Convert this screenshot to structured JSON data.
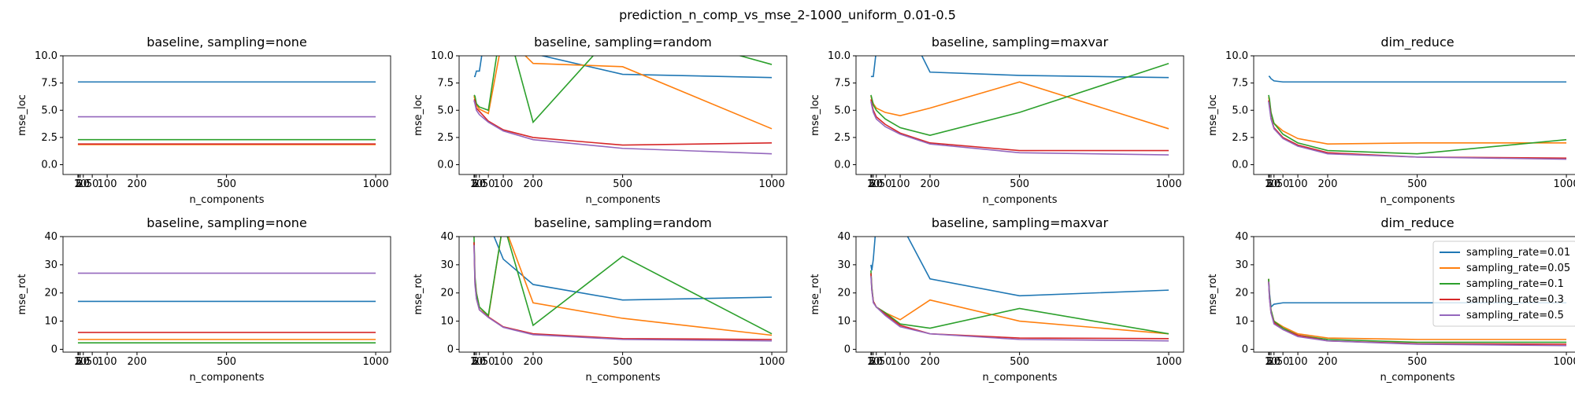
{
  "suptitle": "prediction_n_comp_vs_mse_2-1000_uniform_0.01-0.5",
  "chart_data": [
    {
      "type": "line",
      "title": "baseline, sampling=none",
      "xlabel": "n_components",
      "ylabel": "mse_loc",
      "x": [
        2,
        5,
        10,
        20,
        50,
        100,
        200,
        500,
        1000
      ],
      "xlim": [
        -48,
        1050
      ],
      "xticks": [
        2,
        5,
        10,
        20,
        50,
        100,
        200,
        500,
        1000
      ],
      "ylim": [
        -0.9,
        10
      ],
      "yticks": [
        {
          "value": 0,
          "label": "0.0"
        },
        {
          "value": 2.5,
          "label": "2.5"
        },
        {
          "value": 5,
          "label": "5.0"
        },
        {
          "value": 7.5,
          "label": "7.5"
        },
        {
          "value": 10,
          "label": "10.0"
        }
      ],
      "series": [
        {
          "color": "#1f77b4",
          "values": [
            7.6,
            7.6,
            7.6,
            7.6,
            7.6,
            7.6,
            7.6,
            7.6,
            7.6
          ]
        },
        {
          "color": "#ff7f0e",
          "values": [
            1.85,
            1.85,
            1.85,
            1.85,
            1.85,
            1.85,
            1.85,
            1.85,
            1.85
          ]
        },
        {
          "color": "#2ca02c",
          "values": [
            2.3,
            2.3,
            2.3,
            2.3,
            2.3,
            2.3,
            2.3,
            2.3,
            2.3
          ]
        },
        {
          "color": "#d62728",
          "values": [
            1.9,
            1.9,
            1.9,
            1.9,
            1.9,
            1.9,
            1.9,
            1.9,
            1.9
          ]
        },
        {
          "color": "#9467bd",
          "values": [
            4.4,
            4.4,
            4.4,
            4.4,
            4.4,
            4.4,
            4.4,
            4.4,
            4.4
          ]
        }
      ]
    },
    {
      "type": "line",
      "title": "baseline, sampling=random",
      "xlabel": "n_components",
      "ylabel": "mse_loc",
      "x": [
        2,
        5,
        10,
        20,
        50,
        100,
        200,
        500,
        1000
      ],
      "xlim": [
        -48,
        1050
      ],
      "xticks": [
        2,
        5,
        10,
        20,
        50,
        100,
        200,
        500,
        1000
      ],
      "ylim": [
        -0.9,
        10
      ],
      "yticks": [
        {
          "value": 0,
          "label": "0.0"
        },
        {
          "value": 2.5,
          "label": "2.5"
        },
        {
          "value": 5,
          "label": "5.0"
        },
        {
          "value": 7.5,
          "label": "7.5"
        },
        {
          "value": 10,
          "label": "10.0"
        }
      ],
      "series": [
        {
          "color": "#1f77b4",
          "values": [
            8.1,
            8.1,
            8.6,
            8.6,
            14,
            14,
            10.2,
            8.3,
            8.0
          ]
        },
        {
          "color": "#ff7f0e",
          "values": [
            6.3,
            6.0,
            5.5,
            5.1,
            4.7,
            12,
            9.3,
            9.0,
            3.3
          ]
        },
        {
          "color": "#2ca02c",
          "values": [
            6.4,
            6.3,
            5.6,
            5.3,
            5.0,
            14,
            3.9,
            13,
            9.2
          ]
        },
        {
          "color": "#d62728",
          "values": [
            6.0,
            5.9,
            5.2,
            4.9,
            4.0,
            3.2,
            2.5,
            1.8,
            2.0
          ]
        },
        {
          "color": "#9467bd",
          "values": [
            5.9,
            5.6,
            5.0,
            4.6,
            3.9,
            3.1,
            2.3,
            1.5,
            1.0
          ]
        }
      ]
    },
    {
      "type": "line",
      "title": "baseline, sampling=maxvar",
      "xlabel": "n_components",
      "ylabel": "mse_loc",
      "x": [
        2,
        5,
        10,
        20,
        50,
        100,
        200,
        500,
        1000
      ],
      "xlim": [
        -48,
        1050
      ],
      "xticks": [
        2,
        5,
        10,
        20,
        50,
        100,
        200,
        500,
        1000
      ],
      "ylim": [
        -0.9,
        10
      ],
      "yticks": [
        {
          "value": 0,
          "label": "0.0"
        },
        {
          "value": 2.5,
          "label": "2.5"
        },
        {
          "value": 5,
          "label": "5.0"
        },
        {
          "value": 7.5,
          "label": "7.5"
        },
        {
          "value": 10,
          "label": "10.0"
        }
      ],
      "series": [
        {
          "color": "#1f77b4",
          "values": [
            8.1,
            8.1,
            8.1,
            10.5,
            14,
            14,
            8.5,
            8.2,
            8.0
          ]
        },
        {
          "color": "#ff7f0e",
          "values": [
            6.3,
            6.0,
            5.6,
            5.2,
            4.8,
            4.5,
            5.2,
            7.6,
            3.3
          ]
        },
        {
          "color": "#2ca02c",
          "values": [
            6.4,
            6.1,
            5.5,
            5.0,
            4.2,
            3.4,
            2.7,
            4.8,
            9.3
          ]
        },
        {
          "color": "#d62728",
          "values": [
            6.0,
            5.6,
            5.0,
            4.4,
            3.7,
            2.9,
            2.0,
            1.3,
            1.3
          ]
        },
        {
          "color": "#9467bd",
          "values": [
            5.8,
            5.4,
            4.8,
            4.2,
            3.5,
            2.8,
            1.9,
            1.1,
            0.9
          ]
        }
      ]
    },
    {
      "type": "line",
      "title": "dim_reduce",
      "xlabel": "n_components",
      "ylabel": "mse_loc",
      "x": [
        2,
        5,
        10,
        20,
        50,
        100,
        200,
        500,
        1000
      ],
      "xlim": [
        -48,
        1050
      ],
      "xticks": [
        2,
        5,
        10,
        20,
        50,
        100,
        200,
        500,
        1000
      ],
      "ylim": [
        -0.9,
        10
      ],
      "yticks": [
        {
          "value": 0,
          "label": "0.0"
        },
        {
          "value": 2.5,
          "label": "2.5"
        },
        {
          "value": 5,
          "label": "5.0"
        },
        {
          "value": 7.5,
          "label": "7.5"
        },
        {
          "value": 10,
          "label": "10.0"
        }
      ],
      "series": [
        {
          "color": "#1f77b4",
          "values": [
            8.1,
            8.1,
            7.9,
            7.7,
            7.6,
            7.6,
            7.6,
            7.6,
            7.6
          ]
        },
        {
          "color": "#ff7f0e",
          "values": [
            6.2,
            5.8,
            4.8,
            3.8,
            3.1,
            2.4,
            1.9,
            2.0,
            2.0
          ]
        },
        {
          "color": "#2ca02c",
          "values": [
            6.4,
            6.0,
            4.8,
            3.8,
            2.8,
            2.0,
            1.3,
            1.0,
            2.3
          ]
        },
        {
          "color": "#d62728",
          "values": [
            5.9,
            5.4,
            4.3,
            3.4,
            2.5,
            1.8,
            1.1,
            0.7,
            0.6
          ]
        },
        {
          "color": "#9467bd",
          "values": [
            5.8,
            5.2,
            4.2,
            3.3,
            2.4,
            1.7,
            1.0,
            0.7,
            0.5
          ]
        }
      ]
    },
    {
      "type": "line",
      "title": "baseline, sampling=none",
      "xlabel": "n_components",
      "ylabel": "mse_rot",
      "x": [
        2,
        5,
        10,
        20,
        50,
        100,
        200,
        500,
        1000
      ],
      "xlim": [
        -48,
        1050
      ],
      "xticks": [
        2,
        5,
        10,
        20,
        50,
        100,
        200,
        500,
        1000
      ],
      "ylim": [
        -1,
        40
      ],
      "yticks": [
        0,
        10,
        20,
        30,
        40
      ],
      "series": [
        {
          "color": "#1f77b4",
          "values": [
            17,
            17,
            17,
            17,
            17,
            17,
            17,
            17,
            17
          ]
        },
        {
          "color": "#ff7f0e",
          "values": [
            3.5,
            3.5,
            3.5,
            3.5,
            3.5,
            3.5,
            3.5,
            3.5,
            3.5
          ]
        },
        {
          "color": "#2ca02c",
          "values": [
            2.3,
            2.3,
            2.3,
            2.3,
            2.3,
            2.3,
            2.3,
            2.3,
            2.3
          ]
        },
        {
          "color": "#d62728",
          "values": [
            6,
            6,
            6,
            6,
            6,
            6,
            6,
            6,
            6
          ]
        },
        {
          "color": "#9467bd",
          "values": [
            27,
            27,
            27,
            27,
            27,
            27,
            27,
            27,
            27
          ]
        }
      ]
    },
    {
      "type": "line",
      "title": "baseline, sampling=random",
      "xlabel": "n_components",
      "ylabel": "mse_rot",
      "x": [
        2,
        5,
        10,
        20,
        50,
        100,
        200,
        500,
        1000
      ],
      "xlim": [
        -48,
        1050
      ],
      "xticks": [
        2,
        5,
        10,
        20,
        50,
        100,
        200,
        500,
        1000
      ],
      "ylim": [
        -1,
        40
      ],
      "yticks": [
        0,
        10,
        20,
        30,
        40
      ],
      "series": [
        {
          "color": "#1f77b4",
          "values": [
            45,
            45,
            45,
            45,
            45,
            32,
            23,
            17.5,
            18.5
          ]
        },
        {
          "color": "#ff7f0e",
          "values": [
            38,
            25,
            20,
            15,
            11.5,
            45,
            16.5,
            11,
            5
          ]
        },
        {
          "color": "#2ca02c",
          "values": [
            40,
            26,
            20,
            15,
            12,
            45,
            8.5,
            33,
            5.5
          ]
        },
        {
          "color": "#d62728",
          "values": [
            38,
            24,
            18,
            14,
            11.5,
            8,
            5.5,
            3.8,
            3.5
          ]
        },
        {
          "color": "#9467bd",
          "values": [
            37,
            23,
            18,
            14,
            11.3,
            7.8,
            5.2,
            3.5,
            3.0
          ]
        }
      ]
    },
    {
      "type": "line",
      "title": "baseline, sampling=maxvar",
      "xlabel": "n_components",
      "ylabel": "mse_rot",
      "x": [
        2,
        5,
        10,
        20,
        50,
        100,
        200,
        500,
        1000
      ],
      "xlim": [
        -48,
        1050
      ],
      "xticks": [
        2,
        5,
        10,
        20,
        50,
        100,
        200,
        500,
        1000
      ],
      "ylim": [
        -1,
        40
      ],
      "yticks": [
        0,
        10,
        20,
        30,
        40
      ],
      "series": [
        {
          "color": "#1f77b4",
          "values": [
            30,
            28,
            32,
            45,
            45,
            45,
            25,
            19,
            21
          ]
        },
        {
          "color": "#ff7f0e",
          "values": [
            27,
            22,
            17,
            15,
            13,
            10.5,
            17.5,
            10,
            5.5
          ]
        },
        {
          "color": "#2ca02c",
          "values": [
            28,
            22,
            17,
            15,
            13,
            9,
            7.5,
            14.5,
            5.5
          ]
        },
        {
          "color": "#d62728",
          "values": [
            27,
            21,
            17,
            15,
            12.5,
            8.5,
            5.5,
            4,
            3.8
          ]
        },
        {
          "color": "#9467bd",
          "values": [
            26,
            21,
            16.5,
            15,
            12,
            8,
            5.5,
            3.5,
            3.0
          ]
        }
      ]
    },
    {
      "type": "line",
      "title": "dim_reduce",
      "xlabel": "n_components",
      "ylabel": "mse_rot",
      "x": [
        2,
        5,
        10,
        20,
        50,
        100,
        200,
        500,
        1000
      ],
      "xlim": [
        -48,
        1050
      ],
      "xticks": [
        2,
        5,
        10,
        20,
        50,
        100,
        200,
        500,
        1000
      ],
      "ylim": [
        -1,
        40
      ],
      "yticks": [
        0,
        10,
        20,
        30,
        40
      ],
      "legend": "upper right",
      "series": [
        {
          "name": "sampling_rate=0.01",
          "color": "#1f77b4",
          "values": [
            25,
            20,
            15,
            16,
            16.5,
            16.5,
            16.5,
            16.5,
            16.5
          ]
        },
        {
          "name": "sampling_rate=0.05",
          "color": "#ff7f0e",
          "values": [
            25,
            19,
            14,
            10,
            8,
            5.5,
            4,
            3.5,
            3.5
          ]
        },
        {
          "name": "sampling_rate=0.1",
          "color": "#2ca02c",
          "values": [
            25,
            19,
            14,
            10,
            7.5,
            5,
            3.5,
            2.5,
            2.5
          ]
        },
        {
          "name": "sampling_rate=0.3",
          "color": "#d62728",
          "values": [
            24,
            18,
            13,
            9.5,
            7,
            5,
            3,
            2,
            1.8
          ]
        },
        {
          "name": "sampling_rate=0.5",
          "color": "#9467bd",
          "values": [
            24,
            18,
            13,
            9,
            7,
            4.5,
            3,
            1.8,
            1.3
          ]
        }
      ]
    }
  ]
}
